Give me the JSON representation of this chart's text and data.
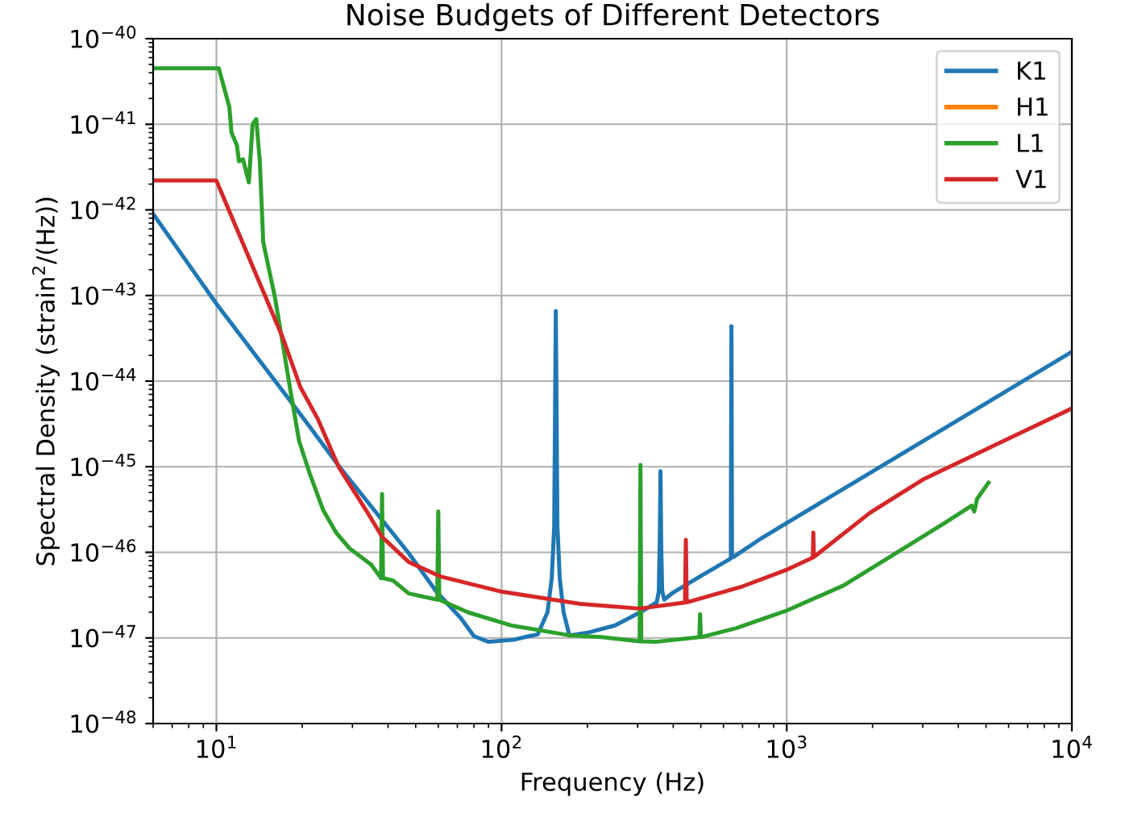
{
  "chart_data": {
    "type": "line",
    "title": "Noise Budgets of Different Detectors",
    "xlabel": "Frequency (Hz)",
    "ylabel": "Spectral Density (strain$^{2}$/(Hz))",
    "log": "xy",
    "grid": true,
    "legend": "top right",
    "xlim": [
      6,
      10000
    ],
    "xticks": [
      {
        "value": 10,
        "label": "10$^{1}$"
      },
      {
        "value": 100,
        "label": "10$^{2}$"
      },
      {
        "value": 1000,
        "label": "10$^{3}$"
      },
      {
        "value": 10000,
        "label": "10$^{4}$"
      }
    ],
    "ylim": [
      1e-48,
      1e-40
    ],
    "yticks": [
      {
        "value": 1e-48,
        "label": "10$^{−48}$"
      },
      {
        "value": 1e-47,
        "label": "10$^{−47}$"
      },
      {
        "value": 1e-46,
        "label": "10$^{−46}$"
      },
      {
        "value": 1e-45,
        "label": "10$^{−45}$"
      },
      {
        "value": 1e-44,
        "label": "10$^{−44}$"
      },
      {
        "value": 1e-43,
        "label": "10$^{−43}$"
      },
      {
        "value": 1e-42,
        "label": "10$^{−42}$"
      },
      {
        "value": 1e-41,
        "label": "10$^{−41}$"
      },
      {
        "value": 1e-40,
        "label": "10$^{−40}$"
      }
    ],
    "series": [
      {
        "name": "K1",
        "color": "#1f77b4",
        "x": [
          6,
          10,
          20.3,
          27,
          47,
          59,
          72,
          80,
          90,
          110,
          125,
          134,
          145,
          150,
          153,
          155,
          157,
          160,
          165,
          173,
          200,
          250,
          307,
          350,
          356,
          359,
          361,
          363,
          366,
          372,
          400,
          500,
          630,
          637,
          640,
          643,
          650,
          800,
          1000,
          2000,
          5000,
          10000
        ],
        "values": [
          9e-43,
          8e-44,
          3.6e-45,
          1e-45,
          1e-46,
          3.5e-47,
          1.7e-47,
          1.05e-47,
          9e-48,
          9.5e-48,
          1.05e-47,
          1.1e-47,
          2e-47,
          5e-47,
          2e-46,
          6.6e-44,
          2e-46,
          5e-47,
          2e-47,
          1.07e-47,
          1.15e-47,
          1.4e-47,
          2e-47,
          2.6e-47,
          3.5e-47,
          1.5e-46,
          8.9e-46,
          1.2e-46,
          3.5e-47,
          2.8e-47,
          3.4e-47,
          5.3e-47,
          8.3e-47,
          8.5e-47,
          4.4e-44,
          8.7e-47,
          8.8e-47,
          1.4e-46,
          2.2e-46,
          8.8e-46,
          5.5e-45,
          2.2e-44
        ]
      },
      {
        "name": "H1",
        "color": "#ff7f0e"
      },
      {
        "name": "L1",
        "color": "#2ca02c",
        "x": [
          6,
          10.2,
          11.1,
          11.3,
          11.8,
          12.0,
          12.4,
          13.0,
          13.4,
          13.8,
          14.2,
          14.6,
          15.3,
          16.0,
          17.1,
          18.2,
          19.5,
          21.2,
          23.7,
          26.3,
          29.4,
          34.9,
          37.8,
          38.1,
          38.4,
          41.6,
          47.3,
          59.5,
          60,
          60.5,
          76,
          108,
          174,
          225,
          305,
          307,
          309,
          347,
          494,
          497,
          500,
          665,
          1005,
          1583,
          2420,
          3580,
          4450,
          4550,
          4650,
          5100
        ],
        "values": [
          4.5e-41,
          4.5e-41,
          1.6e-41,
          8e-42,
          5.7e-42,
          3.7e-42,
          3.9e-42,
          2.1e-42,
          1e-41,
          1.15e-41,
          3.7e-42,
          4.2e-43,
          2e-43,
          1e-43,
          2.7e-44,
          7.6e-45,
          2e-45,
          8.5e-46,
          3.1e-46,
          1.7e-46,
          1.1e-46,
          7.2e-47,
          5e-47,
          4.8e-46,
          5e-47,
          4.7e-47,
          3.3e-47,
          2.8e-47,
          3e-46,
          2.8e-47,
          2e-47,
          1.4e-47,
          1.07e-47,
          1.02e-47,
          9.1e-48,
          1.05e-45,
          9.1e-48,
          9e-48,
          1.02e-47,
          1.9e-47,
          1.02e-47,
          1.3e-47,
          2.1e-47,
          4.1e-47,
          9.8e-47,
          2.2e-46,
          3.5e-46,
          3e-46,
          4.2e-46,
          6.5e-46
        ]
      },
      {
        "name": "V1",
        "color": "#d62728",
        "x": [
          6,
          10,
          17.1,
          19.7,
          22.7,
          26.9,
          33.5,
          38.2,
          47.3,
          61.3,
          98.8,
          189,
          305,
          440,
          443,
          446,
          700,
          1005,
          1235,
          1240,
          1245,
          1960,
          3030,
          10000
        ],
        "values": [
          2.2e-42,
          2.2e-42,
          3.2e-44,
          8.5e-45,
          3.6e-45,
          9.8e-46,
          3.1e-46,
          1.5e-46,
          7.7e-47,
          5.2e-47,
          3.5e-47,
          2.5e-47,
          2.2e-47,
          2.6e-47,
          1.4e-46,
          2.6e-47,
          4e-47,
          6.3e-47,
          8.7e-47,
          1.7e-46,
          8.8e-47,
          2.9e-46,
          7.2e-46,
          4.8e-45
        ]
      }
    ]
  }
}
